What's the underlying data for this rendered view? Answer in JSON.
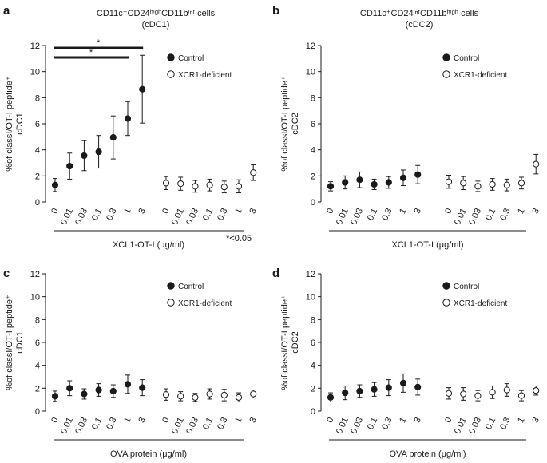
{
  "figure": {
    "footnote": "*<0.05",
    "titles": {
      "cdc1_line1": "CD11c⁺CD24ʰⁱᵍʰCD11bⁱⁿᵗ cells",
      "cdc1_line2": "(cDC1)",
      "cdc2_line1": "CD11c⁺CD24ⁱⁿᵗCD11bʰⁱᵍʰ cells",
      "cdc2_line2": "(cDC2)"
    }
  },
  "colors": {
    "ink": "#1a1a1a",
    "background": "#ffffff"
  },
  "chart_data": [
    {
      "panel": "a",
      "type": "scatter",
      "title": [
        "CD11c⁺CD24ʰⁱᵍʰCD11bⁱⁿᵗ cells",
        "(cDC1)"
      ],
      "ylabel": [
        "%of classI/OT-I peptide⁺",
        "cDC1"
      ],
      "xlabel": "XCL1-OT-I (μg/ml)",
      "ylim": [
        0,
        12
      ],
      "yticks": [
        0,
        2,
        4,
        6,
        8,
        10,
        12
      ],
      "legend": [
        "Control",
        "XCR1-deficient"
      ],
      "significance": [
        {
          "from": "0",
          "to": "3",
          "label": "*"
        },
        {
          "from": "0",
          "to": "1",
          "label": "*"
        }
      ],
      "series": [
        {
          "name": "Control",
          "x": [
            "0",
            "0.01",
            "0.03",
            "0.1",
            "0.3",
            "1",
            "3"
          ],
          "values": [
            1.3,
            2.75,
            3.55,
            3.85,
            4.95,
            6.4,
            8.65
          ],
          "error": [
            0.5,
            1.0,
            1.15,
            1.25,
            1.65,
            1.3,
            2.6
          ]
        },
        {
          "name": "XCR1-deficient",
          "x": [
            "0",
            "0.01",
            "0.03",
            "0.1",
            "0.3",
            "1",
            "3"
          ],
          "values": [
            1.45,
            1.4,
            1.2,
            1.3,
            1.15,
            1.2,
            2.25
          ],
          "error": [
            0.5,
            0.5,
            0.45,
            0.45,
            0.45,
            0.5,
            0.6
          ]
        }
      ]
    },
    {
      "panel": "b",
      "type": "scatter",
      "title": [
        "CD11c⁺CD24ⁱⁿᵗCD11bʰⁱᵍʰ cells",
        "(cDC2)"
      ],
      "ylabel": [
        "%of classI/OT-I peptide⁺",
        "cDC2"
      ],
      "xlabel": "XCL1-OT-I (μg/ml)",
      "ylim": [
        0,
        12
      ],
      "yticks": [
        0,
        2,
        4,
        6,
        8,
        10,
        12
      ],
      "legend": [
        "Control",
        "XCR1-deficient"
      ],
      "series": [
        {
          "name": "Control",
          "x": [
            "0",
            "0.01",
            "0.03",
            "0.1",
            "0.3",
            "1",
            "3"
          ],
          "values": [
            1.2,
            1.5,
            1.7,
            1.35,
            1.5,
            1.85,
            2.1
          ],
          "error": [
            0.35,
            0.5,
            0.6,
            0.4,
            0.45,
            0.6,
            0.7
          ]
        },
        {
          "name": "XCR1-deficient",
          "x": [
            "0",
            "0.01",
            "0.03",
            "0.1",
            "0.3",
            "1",
            "3"
          ],
          "values": [
            1.55,
            1.45,
            1.2,
            1.35,
            1.3,
            1.45,
            2.9
          ],
          "error": [
            0.5,
            0.5,
            0.4,
            0.45,
            0.45,
            0.45,
            0.75
          ]
        }
      ]
    },
    {
      "panel": "c",
      "type": "scatter",
      "ylabel": [
        "%of classI/OT-I peptide⁺",
        "cDC1"
      ],
      "xlabel": "OVA protein (μg/ml)",
      "ylim": [
        0,
        12
      ],
      "yticks": [
        0,
        2,
        4,
        6,
        8,
        10,
        12
      ],
      "legend": [
        "Control",
        "XCR1-deficient"
      ],
      "series": [
        {
          "name": "Control",
          "x": [
            "0",
            "0.01",
            "0.03",
            "0.1",
            "0.3",
            "1",
            "3"
          ],
          "values": [
            1.3,
            2.0,
            1.5,
            1.85,
            1.75,
            2.35,
            2.05
          ],
          "error": [
            0.45,
            0.65,
            0.45,
            0.55,
            0.55,
            0.8,
            0.7
          ]
        },
        {
          "name": "XCR1-deficient",
          "x": [
            "0",
            "0.01",
            "0.03",
            "0.1",
            "0.3",
            "1",
            "3"
          ],
          "values": [
            1.45,
            1.3,
            1.2,
            1.5,
            1.4,
            1.2,
            1.5
          ],
          "error": [
            0.5,
            0.4,
            0.35,
            0.45,
            0.5,
            0.4,
            0.35
          ]
        }
      ]
    },
    {
      "panel": "d",
      "type": "scatter",
      "ylabel": [
        "%of classI/OT-I peptide⁺",
        "cDC2"
      ],
      "xlabel": "OVA protein (μg/ml)",
      "ylim": [
        0,
        12
      ],
      "yticks": [
        0,
        2,
        4,
        6,
        8,
        10,
        12
      ],
      "legend": [
        "Control",
        "XCR1-deficient"
      ],
      "series": [
        {
          "name": "Control",
          "x": [
            "0",
            "0.01",
            "0.03",
            "0.1",
            "0.3",
            "1",
            "3"
          ],
          "values": [
            1.2,
            1.6,
            1.75,
            1.9,
            2.05,
            2.45,
            2.1
          ],
          "error": [
            0.4,
            0.6,
            0.55,
            0.6,
            0.7,
            0.8,
            0.7
          ]
        },
        {
          "name": "XCR1-deficient",
          "x": [
            "0",
            "0.01",
            "0.03",
            "0.1",
            "0.3",
            "1",
            "3"
          ],
          "values": [
            1.55,
            1.5,
            1.35,
            1.65,
            1.85,
            1.35,
            1.8
          ],
          "error": [
            0.5,
            0.55,
            0.45,
            0.55,
            0.55,
            0.45,
            0.4
          ]
        }
      ]
    }
  ]
}
